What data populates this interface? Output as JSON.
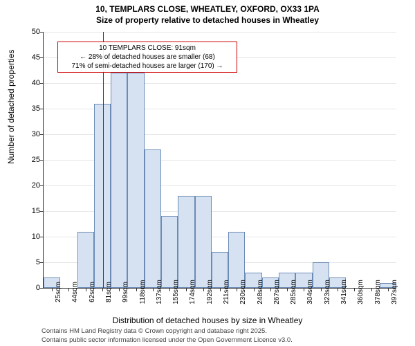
{
  "title": {
    "line1": "10, TEMPLARS CLOSE, WHEATLEY, OXFORD, OX33 1PA",
    "line2": "Size of property relative to detached houses in Wheatley",
    "fontsize": 12
  },
  "chart": {
    "type": "histogram",
    "background_color": "#ffffff",
    "grid_color": "#e6e6e6",
    "bar_fill": "#d6e2f2",
    "bar_stroke": "#6b8bb5",
    "ylabel": "Number of detached properties",
    "xlabel": "Distribution of detached houses by size in Wheatley",
    "ylim": [
      0,
      50
    ],
    "ytick_step": 5,
    "yticks": [
      0,
      5,
      10,
      15,
      20,
      25,
      30,
      35,
      40,
      45,
      50
    ],
    "x_categories": [
      "25sqm",
      "44sqm",
      "62sqm",
      "81sqm",
      "99sqm",
      "118sqm",
      "137sqm",
      "155sqm",
      "174sqm",
      "192sqm",
      "211sqm",
      "230sqm",
      "248sqm",
      "267sqm",
      "285sqm",
      "304sqm",
      "323sqm",
      "341sqm",
      "360sqm",
      "378sqm",
      "397sqm"
    ],
    "values": [
      2,
      0,
      11,
      36,
      42,
      42,
      27,
      14,
      18,
      18,
      7,
      11,
      3,
      2,
      3,
      3,
      5,
      2,
      0,
      0,
      1
    ],
    "bar_width_ratio": 1.0
  },
  "marker": {
    "color": "#cc0000",
    "x_position": 3.55
  },
  "annotation": {
    "border_color": "#cc0000",
    "line1": "10 TEMPLARS CLOSE: 91sqm",
    "line2": "← 28% of detached houses are smaller (68)",
    "line3": "71% of semi-detached houses are larger (170) →"
  },
  "footer": {
    "line1": "Contains HM Land Registry data © Crown copyright and database right 2025.",
    "line2": "Contains public sector information licensed under the Open Government Licence v3.0."
  }
}
